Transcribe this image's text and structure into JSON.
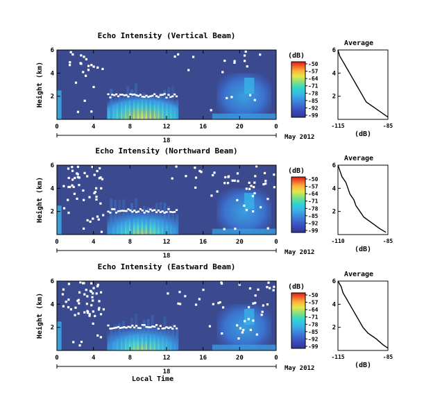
{
  "figure": {
    "x_label": "Local Time",
    "y_label": "Height (km)",
    "date_label": "May 2012",
    "avg_xlabel": "(dB)",
    "cb_label": "(dB)"
  },
  "colors": {
    "background": "#3b4a8f",
    "gap": "#ffffff",
    "colormap": [
      "#313695",
      "#3a4fc0",
      "#3d7fd8",
      "#39b2e8",
      "#2fd4d0",
      "#7fe07f",
      "#e6e64a",
      "#fdae3a",
      "#f05a28",
      "#d7191c"
    ]
  },
  "chart_data": [
    {
      "type": "heatmap",
      "title": "Echo Intensity (Vertical Beam)",
      "xlabel": "",
      "ylabel": "Height (km)",
      "x_ticks": [
        "0",
        "4",
        "8",
        "12",
        "16",
        "20",
        "0"
      ],
      "x_day": "18",
      "xlim": [
        0,
        24
      ],
      "y_ticks": [
        "2",
        "4",
        "6"
      ],
      "ylim": [
        0,
        6
      ],
      "colorbar": {
        "label": "(dB)",
        "ticks": [
          "-50",
          "-57",
          "-64",
          "-71",
          "-78",
          "-85",
          "-92",
          "-99"
        ]
      },
      "features": [
        {
          "desc": "strong low echo",
          "t": [
            5.8,
            13.0
          ],
          "h": [
            0,
            2.0
          ],
          "peak_db": -68
        },
        {
          "desc": "melting-layer band",
          "t": [
            5.5,
            13.0
          ],
          "h": [
            2.0,
            2.3
          ]
        },
        {
          "desc": "afternoon convection",
          "t": [
            17.5,
            23.5
          ],
          "h": [
            0,
            4.0
          ],
          "peak_db": -80
        }
      ],
      "average": {
        "title": "Average",
        "xlabel": "(dB)",
        "x_ticks": [
          "-115",
          "-85"
        ],
        "xlim": [
          -115,
          -85
        ],
        "y_ticks": [
          "2",
          "4",
          "6"
        ],
        "ylim": [
          0,
          6
        ],
        "height_km": [
          0.2,
          0.5,
          1.0,
          1.5,
          2.0,
          2.5,
          3.0,
          3.5,
          4.0,
          4.5,
          5.0,
          5.5,
          6.0
        ],
        "value_db": [
          -85,
          -88,
          -93,
          -98,
          -100,
          -102,
          -104,
          -106,
          -108,
          -110,
          -112,
          -114,
          -115
        ]
      }
    },
    {
      "type": "heatmap",
      "title": "Echo Intensity (Northward Beam)",
      "xlabel": "",
      "ylabel": "Height (km)",
      "x_ticks": [
        "0",
        "4",
        "8",
        "12",
        "16",
        "20",
        "0"
      ],
      "x_day": "18",
      "xlim": [
        0,
        24
      ],
      "y_ticks": [
        "2",
        "4",
        "6"
      ],
      "ylim": [
        0,
        6
      ],
      "colorbar": {
        "label": "(dB)",
        "ticks": [
          "-50",
          "-57",
          "-64",
          "-71",
          "-78",
          "-85",
          "-92",
          "-99"
        ]
      },
      "features": [
        {
          "desc": "strong low echo",
          "t": [
            5.8,
            13.0
          ],
          "h": [
            0,
            2.0
          ],
          "peak_db": -72
        },
        {
          "desc": "melting-layer band",
          "t": [
            5.5,
            13.0
          ],
          "h": [
            2.0,
            2.3
          ]
        },
        {
          "desc": "afternoon convection",
          "t": [
            17.5,
            23.5
          ],
          "h": [
            0,
            4.0
          ],
          "peak_db": -80
        }
      ],
      "average": {
        "title": "Average",
        "xlabel": "(dB)",
        "x_ticks": [
          "-110",
          "-85"
        ],
        "xlim": [
          -110,
          -85
        ],
        "y_ticks": [
          "2",
          "4",
          "6"
        ],
        "ylim": [
          0,
          6
        ],
        "height_km": [
          0.2,
          0.5,
          1.0,
          1.5,
          2.0,
          2.5,
          3.0,
          3.5,
          4.0,
          4.5,
          5.0,
          5.5,
          6.0
        ],
        "value_db": [
          -86,
          -89,
          -93,
          -97,
          -99,
          -101,
          -102,
          -104,
          -105,
          -106,
          -108,
          -109,
          -110
        ]
      }
    },
    {
      "type": "heatmap",
      "title": "Echo Intensity (Eastward Beam)",
      "xlabel": "Local Time",
      "ylabel": "Height (km)",
      "x_ticks": [
        "0",
        "4",
        "8",
        "12",
        "16",
        "20",
        "0"
      ],
      "x_day": "18",
      "xlim": [
        0,
        24
      ],
      "y_ticks": [
        "2",
        "4",
        "6"
      ],
      "ylim": [
        0,
        6
      ],
      "colorbar": {
        "label": "(dB)",
        "ticks": [
          "-50",
          "-57",
          "-64",
          "-71",
          "-78",
          "-85",
          "-92",
          "-99"
        ]
      },
      "features": [
        {
          "desc": "strong low echo",
          "t": [
            5.8,
            13.0
          ],
          "h": [
            0,
            2.0
          ],
          "peak_db": -70
        },
        {
          "desc": "melting-layer band",
          "t": [
            5.5,
            13.0
          ],
          "h": [
            2.0,
            2.3
          ]
        },
        {
          "desc": "afternoon convection",
          "t": [
            17.5,
            23.5
          ],
          "h": [
            0,
            4.0
          ],
          "peak_db": -82
        }
      ],
      "average": {
        "title": "Average",
        "xlabel": "(dB)",
        "x_ticks": [
          "-115",
          "-85"
        ],
        "xlim": [
          -115,
          -85
        ],
        "y_ticks": [
          "2",
          "4",
          "6"
        ],
        "ylim": [
          0,
          6
        ],
        "height_km": [
          0.2,
          0.5,
          1.0,
          1.5,
          2.0,
          2.5,
          3.0,
          3.5,
          4.0,
          4.5,
          5.0,
          5.5,
          6.0
        ],
        "value_db": [
          -85,
          -88,
          -92,
          -97,
          -100,
          -102,
          -104,
          -106,
          -108,
          -110,
          -112,
          -113,
          -115
        ]
      }
    }
  ]
}
